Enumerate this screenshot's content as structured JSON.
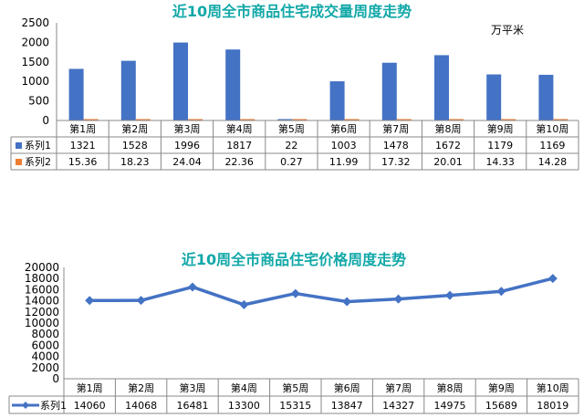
{
  "chart_data": [
    {
      "type": "bar",
      "title": "近10周全市商品住宅成交量周度走势",
      "unit_label": "万平米",
      "categories": [
        "第1周",
        "第2周",
        "第3周",
        "第4周",
        "第5周",
        "第6周",
        "第7周",
        "第8周",
        "第9周",
        "第10周"
      ],
      "yticks": [
        "2500",
        "2000",
        "1500",
        "1000",
        "500",
        "0"
      ],
      "ylim": [
        0,
        2500
      ],
      "grid": false,
      "legend": "data-table",
      "series": [
        {
          "name": "系列1",
          "color": "#4472c4",
          "values": [
            1321,
            1528,
            1996,
            1817,
            22,
            1003,
            1478,
            1672,
            1179,
            1169
          ],
          "labels": [
            "1321",
            "1528",
            "1996",
            "1817",
            "22",
            "1003",
            "1478",
            "1672",
            "1179",
            "1169"
          ]
        },
        {
          "name": "系列2",
          "color": "#ed7d31",
          "values": [
            15.36,
            18.23,
            24.04,
            22.36,
            0.27,
            11.99,
            17.32,
            20.01,
            14.33,
            14.28
          ],
          "labels": [
            "15.36",
            "18.23",
            "24.04",
            "22.36",
            "0.27",
            "11.99",
            "17.32",
            "20.01",
            "14.33",
            "14.28"
          ]
        }
      ]
    },
    {
      "type": "line",
      "title": "近10周全市商品住宅价格周度走势",
      "categories": [
        "第1周",
        "第2周",
        "第3周",
        "第4周",
        "第5周",
        "第6周",
        "第7周",
        "第8周",
        "第9周",
        "第10周"
      ],
      "yticks": [
        "20000",
        "18000",
        "16000",
        "14000",
        "12000",
        "10000",
        "8000",
        "6000",
        "4000",
        "2000",
        "0"
      ],
      "ylim": [
        0,
        20000
      ],
      "grid": false,
      "legend": "data-table",
      "series": [
        {
          "name": "系列1",
          "color": "#4472c4",
          "values": [
            14060,
            14068,
            16481,
            13300,
            15315,
            13847,
            14327,
            14975,
            15689,
            18019
          ],
          "labels": [
            "14060",
            "14068",
            "16481",
            "13300",
            "15315",
            "13847",
            "14327",
            "14975",
            "15689",
            "18019"
          ]
        }
      ]
    }
  ]
}
